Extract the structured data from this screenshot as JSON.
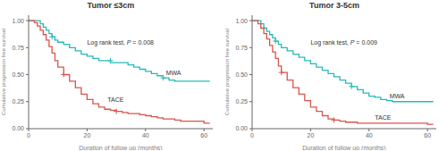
{
  "chart_data": [
    {
      "type": "step",
      "title": "Tumor ≤3cm",
      "xlabel": "Duration of follow up (months)",
      "ylabel": "Cumulative progression free survival",
      "xlim": [
        0,
        63
      ],
      "ylim": [
        0.0,
        1.05
      ],
      "xticks": [
        0,
        20,
        40,
        60
      ],
      "yticks": [
        {
          "value": 0.0,
          "label": "0.00"
        },
        {
          "value": 0.25,
          "label": "0.25"
        },
        {
          "value": 0.5,
          "label": "0.50"
        },
        {
          "value": 0.75,
          "label": "0.75"
        },
        {
          "value": 1.0,
          "label": "1.00"
        }
      ],
      "grid": false,
      "annotations": [
        {
          "text": "Log rank test, P = 0.008",
          "x": 20,
          "y": 0.8
        }
      ],
      "series": [
        {
          "name": "MWA",
          "color": "#29b9b9",
          "x": [
            0,
            3,
            4,
            5,
            6,
            7,
            8,
            9,
            10,
            12,
            14,
            16,
            18,
            20,
            22,
            24,
            26,
            28,
            30,
            32,
            34,
            36,
            38,
            40,
            42,
            44,
            46,
            48,
            50,
            60,
            62
          ],
          "values": [
            1.0,
            1.0,
            0.97,
            0.94,
            0.91,
            0.88,
            0.85,
            0.82,
            0.8,
            0.78,
            0.75,
            0.72,
            0.69,
            0.67,
            0.65,
            0.63,
            0.63,
            0.61,
            0.61,
            0.61,
            0.59,
            0.57,
            0.55,
            0.53,
            0.51,
            0.49,
            0.47,
            0.45,
            0.44,
            0.44,
            0.44
          ],
          "censored_x": [
            8,
            28,
            46
          ],
          "censored_y": [
            0.85,
            0.63,
            0.47
          ],
          "label_x": 47,
          "label_y": 0.52
        },
        {
          "name": "TACE",
          "color": "#d9544d",
          "x": [
            0,
            2,
            3,
            4,
            5,
            6,
            7,
            8,
            9,
            10,
            12,
            14,
            16,
            18,
            20,
            22,
            24,
            26,
            28,
            30,
            32,
            34,
            36,
            38,
            40,
            42,
            44,
            46,
            48,
            50,
            52,
            60,
            62
          ],
          "values": [
            1.0,
            0.98,
            0.95,
            0.91,
            0.87,
            0.82,
            0.76,
            0.7,
            0.63,
            0.57,
            0.5,
            0.44,
            0.38,
            0.32,
            0.27,
            0.23,
            0.2,
            0.18,
            0.17,
            0.16,
            0.15,
            0.14,
            0.14,
            0.13,
            0.12,
            0.11,
            0.1,
            0.09,
            0.09,
            0.08,
            0.07,
            0.05,
            0.05
          ],
          "censored_x": [
            12,
            30
          ],
          "censored_y": [
            0.5,
            0.16
          ],
          "label_x": 27,
          "label_y": 0.27
        }
      ]
    },
    {
      "type": "step",
      "title": "Tumor 3-5cm",
      "xlabel": "Duration of follow up (months)",
      "ylabel": "Cumulative progression free survival",
      "xlim": [
        0,
        63
      ],
      "ylim": [
        0.0,
        1.05
      ],
      "xticks": [
        0,
        20,
        40,
        60
      ],
      "yticks": [
        {
          "value": 0.0,
          "label": "0.00"
        },
        {
          "value": 0.25,
          "label": "0.25"
        },
        {
          "value": 0.5,
          "label": "0.50"
        },
        {
          "value": 0.75,
          "label": "0.75"
        },
        {
          "value": 1.0,
          "label": "1.00"
        }
      ],
      "grid": false,
      "annotations": [
        {
          "text": "Log rank test, P = 0.009",
          "x": 20,
          "y": 0.8
        }
      ],
      "series": [
        {
          "name": "MWA",
          "color": "#29b9b9",
          "x": [
            0,
            2,
            3,
            4,
            5,
            6,
            7,
            8,
            9,
            10,
            12,
            14,
            16,
            18,
            20,
            22,
            24,
            26,
            28,
            30,
            32,
            34,
            36,
            38,
            40,
            42,
            44,
            46,
            48,
            60,
            62
          ],
          "values": [
            1.0,
            1.0,
            0.97,
            0.93,
            0.9,
            0.87,
            0.84,
            0.81,
            0.78,
            0.75,
            0.72,
            0.69,
            0.66,
            0.63,
            0.6,
            0.57,
            0.54,
            0.51,
            0.48,
            0.45,
            0.42,
            0.39,
            0.36,
            0.33,
            0.3,
            0.29,
            0.27,
            0.26,
            0.25,
            0.25,
            0.25
          ],
          "censored_x": [
            8,
            34
          ],
          "censored_y": [
            0.81,
            0.39
          ],
          "label_x": 47,
          "label_y": 0.3
        },
        {
          "name": "TACE",
          "color": "#d9544d",
          "x": [
            0,
            2,
            3,
            4,
            5,
            6,
            7,
            8,
            9,
            10,
            12,
            14,
            16,
            18,
            20,
            22,
            24,
            26,
            28,
            30,
            32,
            34,
            36,
            38,
            40,
            42,
            60,
            62
          ],
          "values": [
            1.0,
            0.97,
            0.93,
            0.88,
            0.83,
            0.77,
            0.71,
            0.65,
            0.58,
            0.52,
            0.45,
            0.38,
            0.32,
            0.26,
            0.2,
            0.16,
            0.12,
            0.09,
            0.08,
            0.07,
            0.06,
            0.06,
            0.05,
            0.05,
            0.05,
            0.05,
            0.04,
            0.04
          ],
          "censored_x": [
            10,
            28
          ],
          "censored_y": [
            0.52,
            0.08
          ],
          "label_x": 42,
          "label_y": 0.1
        }
      ]
    }
  ]
}
